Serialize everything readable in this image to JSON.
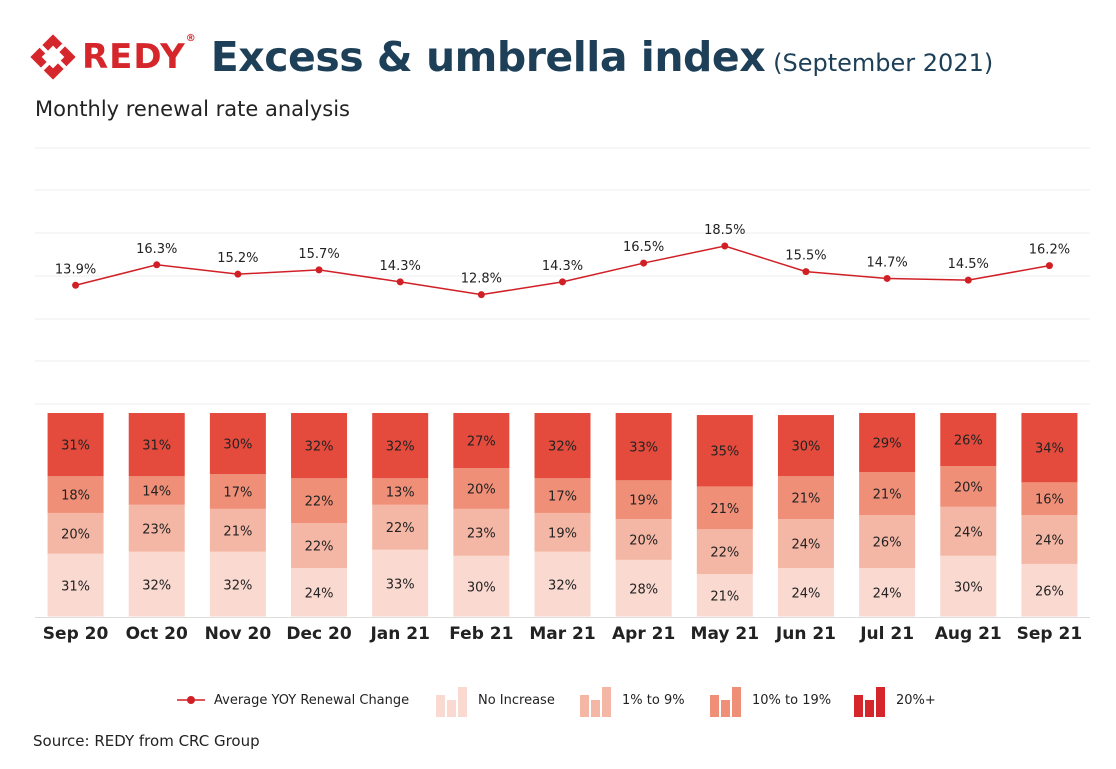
{
  "header": {
    "brand": "REDY",
    "brand_mark": "®",
    "title": "Excess & umbrella index",
    "title_suffix": "(September 2021)",
    "subtitle": "Monthly renewal rate analysis"
  },
  "source": "Source: REDY from CRC Group",
  "colors": {
    "brand_red": "#d5262c",
    "title_navy": "#1d3f57",
    "line": "#d11f26",
    "no_increase": "#f9d9d0",
    "one_to_nine": "#f5b7a5",
    "ten_to_nineteen": "#ef8f78",
    "twenty_plus": "#e44b3d"
  },
  "chart_data": {
    "type": "bar",
    "stacked": true,
    "categories": [
      "Sep 20",
      "Oct 20",
      "Nov 20",
      "Dec 20",
      "Jan 21",
      "Feb 21",
      "Mar 21",
      "Apr 21",
      "May 21",
      "Jun 21",
      "Jul 21",
      "Aug 21",
      "Sep 21"
    ],
    "series": [
      {
        "name": "No Increase",
        "values": [
          31,
          32,
          32,
          24,
          33,
          30,
          32,
          28,
          21,
          24,
          24,
          30,
          26
        ],
        "labels": [
          "31%",
          "32%",
          "32%",
          "24%",
          "33%",
          "30%",
          "32%",
          "28%",
          "21%",
          "24%",
          "24%",
          "30%",
          "26%"
        ],
        "color": "#f9d9d0"
      },
      {
        "name": "1% to 9%",
        "values": [
          20,
          23,
          21,
          22,
          22,
          23,
          19,
          20,
          22,
          24,
          26,
          24,
          24
        ],
        "labels": [
          "20%",
          "23%",
          "21%",
          "22%",
          "22%",
          "23%",
          "19%",
          "20%",
          "22%",
          "24%",
          "26%",
          "24%",
          "24%"
        ],
        "color": "#f5b7a5"
      },
      {
        "name": "10% to 19%",
        "values": [
          18,
          14,
          17,
          22,
          13,
          20,
          17,
          19,
          21,
          21,
          21,
          20,
          16
        ],
        "labels": [
          "18%",
          "14%",
          "17%",
          "22%",
          "13%",
          "20%",
          "17%",
          "19%",
          "21%",
          "21%",
          "21%",
          "20%",
          "16%"
        ],
        "color": "#ef8f78"
      },
      {
        "name": "20%+",
        "values": [
          31,
          31,
          30,
          32,
          32,
          27,
          32,
          33,
          35,
          30,
          29,
          26,
          34
        ],
        "labels": [
          "31%",
          "31%",
          "30%",
          "32%",
          "32%",
          "27%",
          "32%",
          "33%",
          "35%",
          "30%",
          "29%",
          "26%",
          "34%"
        ],
        "color": "#e44b3d"
      }
    ],
    "line_series": {
      "name": "Average YOY Renewal Change",
      "values": [
        13.9,
        16.3,
        15.2,
        15.7,
        14.3,
        12.8,
        14.3,
        16.5,
        18.5,
        15.5,
        14.7,
        14.5,
        16.2
      ],
      "labels": [
        "13.9%",
        "16.3%",
        "15.2%",
        "15.7%",
        "14.3%",
        "12.8%",
        "14.3%",
        "16.5%",
        "18.5%",
        "15.5%",
        "14.7%",
        "14.5%",
        "16.2%"
      ],
      "color": "#d11f26"
    },
    "legend": [
      "Average YOY Renewal Change",
      "No Increase",
      "1% to 9%",
      "10% to 19%",
      "20%+"
    ],
    "legend_position": "bottom",
    "grid": true
  }
}
